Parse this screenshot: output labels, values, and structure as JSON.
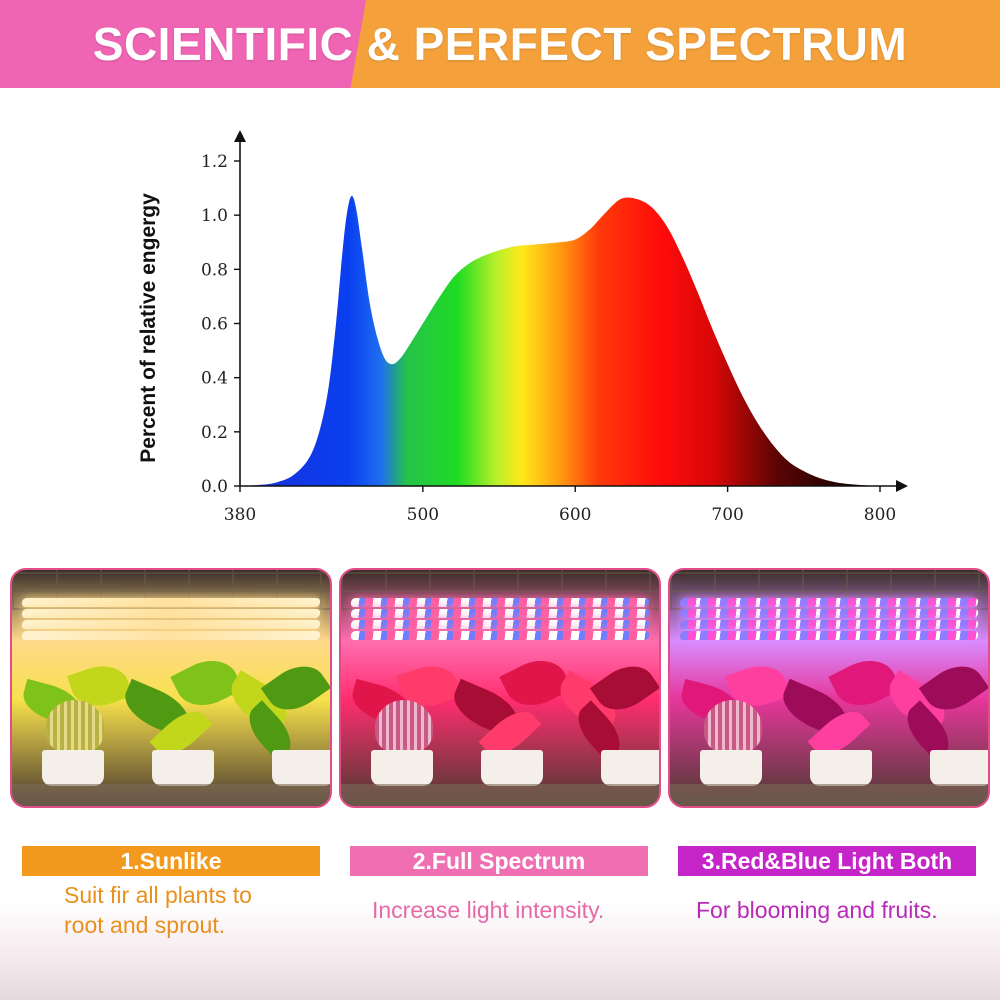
{
  "banner": {
    "title": "SCIENTIFIC & PERFECT SPECTRUM"
  },
  "chart_data": {
    "type": "area",
    "title": "",
    "xlabel": "",
    "ylabel": "Percent of relative engergy",
    "xlim": [
      380,
      800
    ],
    "ylim": [
      0,
      1.2
    ],
    "xticks": [
      "380",
      "500",
      "600",
      "700",
      "800"
    ],
    "yticks": [
      "0.0",
      "0.2",
      "0.4",
      "0.6",
      "0.8",
      "1.0",
      "1.2"
    ],
    "grid": false,
    "series": [
      {
        "x": [
          380,
          395,
          405,
          415,
          425,
          432,
          438,
          443,
          447,
          450,
          453,
          456,
          460,
          465,
          470,
          475,
          480,
          485,
          490,
          500,
          510,
          520,
          530,
          540,
          550,
          560,
          570,
          580,
          590,
          600,
          610,
          620,
          630,
          640,
          650,
          660,
          670,
          680,
          690,
          700,
          710,
          720,
          730,
          740,
          750,
          760,
          770,
          780,
          790,
          800
        ],
        "values": [
          0.0,
          0.005,
          0.015,
          0.04,
          0.1,
          0.2,
          0.36,
          0.6,
          0.85,
          1.0,
          1.07,
          1.03,
          0.88,
          0.68,
          0.55,
          0.47,
          0.45,
          0.47,
          0.51,
          0.6,
          0.69,
          0.77,
          0.82,
          0.85,
          0.87,
          0.885,
          0.89,
          0.895,
          0.9,
          0.91,
          0.95,
          1.01,
          1.06,
          1.06,
          1.03,
          0.96,
          0.85,
          0.72,
          0.58,
          0.45,
          0.33,
          0.23,
          0.15,
          0.09,
          0.055,
          0.03,
          0.015,
          0.007,
          0.003,
          0.0
        ]
      }
    ]
  },
  "modes": [
    {
      "label": "1.Sunlike",
      "description": [
        "Suit fir all plants to",
        "root and sprout."
      ],
      "label_bg": "#f39a1e",
      "desc_color": "#e8901e",
      "light_color": "#ffd98a",
      "tint": "#f7e14c"
    },
    {
      "label": "2.Full Spectrum",
      "description": [
        "Increase light intensity."
      ],
      "label_bg": "#f06fb3",
      "desc_color": "#e66aa8",
      "light_color": "#ff6fb0",
      "tint": "#ff2d6e"
    },
    {
      "label": "3.Red&Blue Light Both",
      "description": [
        "For blooming and fruits."
      ],
      "label_bg": "#c424c8",
      "desc_color": "#b82ab8",
      "light_color": "#d88cff",
      "tint": "#e6369a"
    }
  ]
}
